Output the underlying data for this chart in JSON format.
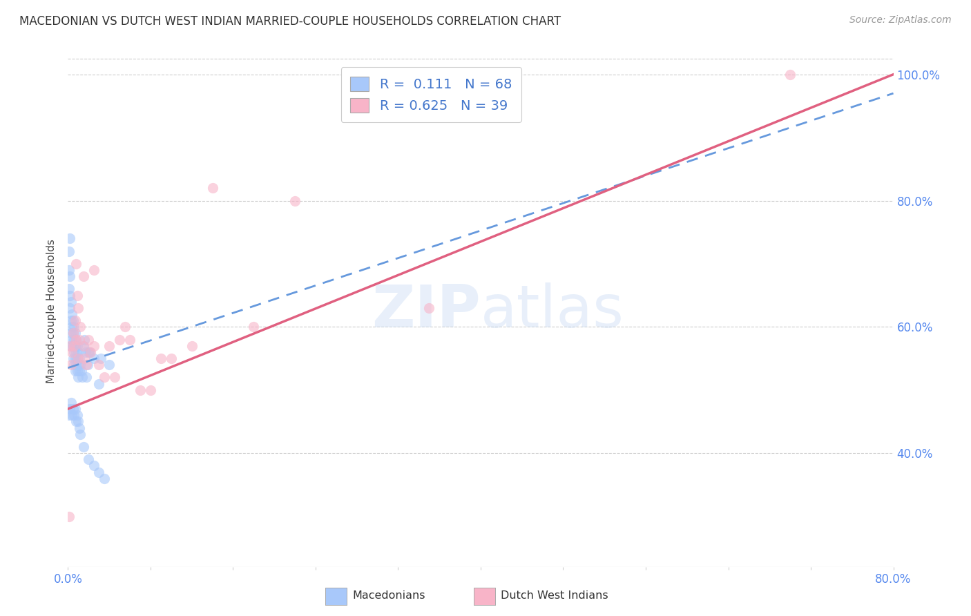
{
  "title": "MACEDONIAN VS DUTCH WEST INDIAN MARRIED-COUPLE HOUSEHOLDS CORRELATION CHART",
  "source": "Source: ZipAtlas.com",
  "ylabel": "Married-couple Households",
  "xmin": 0.0,
  "xmax": 0.8,
  "ymin": 0.22,
  "ymax": 1.03,
  "ytick_vals": [
    0.4,
    0.6,
    0.8,
    1.0
  ],
  "xtick_vals": [
    0.0,
    0.08,
    0.16,
    0.24,
    0.32,
    0.4,
    0.48,
    0.56,
    0.64,
    0.72,
    0.8
  ],
  "macedonian_color": "#a8c8fa",
  "dutch_color": "#f8b4c8",
  "macedonian_R": 0.111,
  "macedonian_N": 68,
  "dutch_R": 0.625,
  "dutch_N": 39,
  "mac_line_x": [
    0.0,
    0.8
  ],
  "mac_line_y": [
    0.535,
    0.97
  ],
  "dutch_line_x": [
    0.0,
    0.8
  ],
  "dutch_line_y": [
    0.47,
    1.0
  ],
  "macedonian_scatter_x": [
    0.001,
    0.001,
    0.001,
    0.002,
    0.002,
    0.002,
    0.003,
    0.003,
    0.003,
    0.003,
    0.004,
    0.004,
    0.004,
    0.005,
    0.005,
    0.005,
    0.005,
    0.006,
    0.006,
    0.006,
    0.006,
    0.007,
    0.007,
    0.007,
    0.007,
    0.008,
    0.008,
    0.008,
    0.009,
    0.009,
    0.009,
    0.01,
    0.01,
    0.01,
    0.011,
    0.011,
    0.012,
    0.013,
    0.014,
    0.015,
    0.016,
    0.017,
    0.018,
    0.019,
    0.02,
    0.021,
    0.025,
    0.03,
    0.032,
    0.04,
    0.001,
    0.002,
    0.003,
    0.004,
    0.005,
    0.006,
    0.007,
    0.008,
    0.009,
    0.01,
    0.011,
    0.012,
    0.015,
    0.02,
    0.025,
    0.03,
    0.035,
    0.002
  ],
  "macedonian_scatter_y": [
    0.72,
    0.69,
    0.66,
    0.68,
    0.65,
    0.63,
    0.64,
    0.61,
    0.59,
    0.57,
    0.62,
    0.6,
    0.58,
    0.61,
    0.59,
    0.57,
    0.55,
    0.6,
    0.58,
    0.56,
    0.54,
    0.59,
    0.57,
    0.55,
    0.53,
    0.58,
    0.56,
    0.54,
    0.57,
    0.55,
    0.53,
    0.56,
    0.54,
    0.52,
    0.55,
    0.53,
    0.54,
    0.53,
    0.52,
    0.57,
    0.58,
    0.56,
    0.52,
    0.54,
    0.56,
    0.56,
    0.55,
    0.51,
    0.55,
    0.54,
    0.46,
    0.47,
    0.48,
    0.46,
    0.47,
    0.46,
    0.47,
    0.45,
    0.46,
    0.45,
    0.44,
    0.43,
    0.41,
    0.39,
    0.38,
    0.37,
    0.36,
    0.74
  ],
  "dutch_scatter_x": [
    0.001,
    0.002,
    0.003,
    0.004,
    0.005,
    0.006,
    0.007,
    0.008,
    0.009,
    0.01,
    0.011,
    0.012,
    0.015,
    0.016,
    0.018,
    0.02,
    0.022,
    0.025,
    0.03,
    0.035,
    0.04,
    0.05,
    0.06,
    0.07,
    0.08,
    0.1,
    0.12,
    0.14,
    0.18,
    0.22,
    0.7,
    0.008,
    0.01,
    0.015,
    0.025,
    0.045,
    0.055,
    0.09,
    0.35
  ],
  "dutch_scatter_y": [
    0.3,
    0.57,
    0.54,
    0.56,
    0.59,
    0.57,
    0.61,
    0.58,
    0.65,
    0.55,
    0.58,
    0.6,
    0.57,
    0.55,
    0.54,
    0.58,
    0.56,
    0.57,
    0.54,
    0.52,
    0.57,
    0.58,
    0.58,
    0.5,
    0.5,
    0.55,
    0.57,
    0.82,
    0.6,
    0.8,
    1.0,
    0.7,
    0.63,
    0.68,
    0.69,
    0.52,
    0.6,
    0.55,
    0.63
  ]
}
